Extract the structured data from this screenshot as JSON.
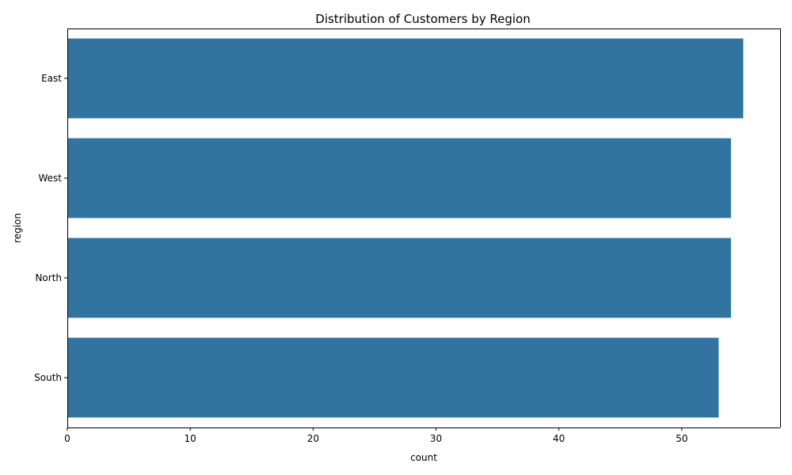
{
  "chart_data": {
    "type": "bar",
    "orientation": "horizontal",
    "title": "Distribution of Customers by Region",
    "xlabel": "count",
    "ylabel": "region",
    "categories": [
      "East",
      "West",
      "North",
      "South"
    ],
    "values": [
      55,
      54,
      54,
      53
    ],
    "xlim": [
      0,
      58
    ],
    "xticks": [
      0,
      10,
      20,
      30,
      40,
      50
    ],
    "grid": false,
    "bar_color": "#3274a1"
  }
}
